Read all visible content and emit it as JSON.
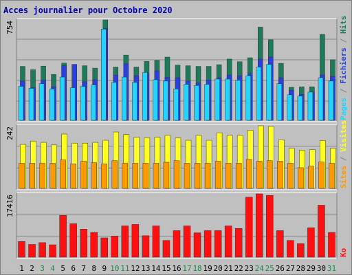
{
  "title": "Acces journalier pour Octobre 2020",
  "colors": {
    "frame_bg": "#c0c0c0",
    "panel_bg": "#c0c0c0",
    "title": "#0000aa",
    "weekday_label": "#000000",
    "weekend_label": "#1e8a4a",
    "hits": "#1d7a5a",
    "files": "#2a3fe0",
    "pages": "#22d5ff",
    "visits": "#ffff22",
    "sites": "#ff9900",
    "ko": "#ff1010"
  },
  "chart_data": [
    {
      "type": "bar",
      "panel": "hits-files-pages",
      "ymax_label": "754",
      "ylim": [
        0,
        754
      ],
      "legend": [
        {
          "text": "Pages",
          "key": "pages"
        },
        {
          "text": " / ",
          "key": "sep"
        },
        {
          "text": "Fichiers",
          "key": "files"
        },
        {
          "text": " / ",
          "key": "sep"
        },
        {
          "text": "Hits",
          "key": "hits"
        }
      ],
      "categories": [
        "1",
        "2",
        "3",
        "4",
        "5",
        "6",
        "7",
        "8",
        "9",
        "10",
        "11",
        "12",
        "13",
        "14",
        "15",
        "16",
        "17",
        "18",
        "19",
        "20",
        "21",
        "22",
        "23",
        "24",
        "25",
        "26",
        "27",
        "28",
        "29",
        "30",
        "31"
      ],
      "series": [
        {
          "name": "Hits",
          "values": [
            405,
            380,
            407,
            345,
            430,
            420,
            410,
            392,
            754,
            400,
            490,
            400,
            442,
            450,
            475,
            415,
            410,
            405,
            405,
            418,
            460,
            440,
            470,
            700,
            605,
            428,
            248,
            252,
            252,
            645,
            455
          ]
        },
        {
          "name": "Fichiers",
          "values": [
            295,
            245,
            300,
            252,
            410,
            420,
            290,
            305,
            690,
            340,
            425,
            335,
            350,
            372,
            322,
            320,
            295,
            280,
            302,
            320,
            340,
            335,
            350,
            460,
            475,
            320,
            225,
            195,
            212,
            340,
            330
          ]
        },
        {
          "name": "Pages",
          "values": [
            255,
            240,
            275,
            235,
            325,
            245,
            255,
            265,
            685,
            285,
            325,
            285,
            360,
            305,
            295,
            235,
            270,
            262,
            270,
            310,
            310,
            300,
            335,
            400,
            420,
            275,
            192,
            182,
            212,
            320,
            295
          ]
        }
      ]
    },
    {
      "type": "bar",
      "panel": "visits-sites",
      "ymax_label": "242",
      "ylim": [
        0,
        242
      ],
      "legend": [
        {
          "text": "Sites",
          "key": "sites"
        },
        {
          "text": " / ",
          "key": "sep"
        },
        {
          "text": "Visites",
          "key": "visits"
        }
      ],
      "categories": [
        "1",
        "2",
        "3",
        "4",
        "5",
        "6",
        "7",
        "8",
        "9",
        "10",
        "11",
        "12",
        "13",
        "14",
        "15",
        "16",
        "17",
        "18",
        "19",
        "20",
        "21",
        "22",
        "23",
        "24",
        "25",
        "26",
        "27",
        "28",
        "29",
        "30",
        "31"
      ],
      "series": [
        {
          "name": "Visites",
          "values": [
            170,
            183,
            178,
            168,
            210,
            175,
            175,
            178,
            186,
            218,
            208,
            198,
            196,
            198,
            205,
            195,
            186,
            205,
            186,
            215,
            205,
            205,
            225,
            242,
            240,
            188,
            155,
            148,
            150,
            185,
            155
          ]
        },
        {
          "name": "Sites",
          "values": [
            97,
            97,
            97,
            97,
            110,
            95,
            105,
            99,
            95,
            107,
            97,
            97,
            97,
            97,
            101,
            107,
            97,
            97,
            97,
            105,
            97,
            97,
            112,
            105,
            107,
            105,
            97,
            80,
            86,
            102,
            97
          ]
        }
      ]
    },
    {
      "type": "bar",
      "panel": "ko",
      "ymax_label": "17416",
      "ylim": [
        0,
        17416
      ],
      "legend": [
        {
          "text": "Ko",
          "key": "ko"
        }
      ],
      "categories": [
        "1",
        "2",
        "3",
        "4",
        "5",
        "6",
        "7",
        "8",
        "9",
        "10",
        "11",
        "12",
        "13",
        "14",
        "15",
        "16",
        "17",
        "18",
        "19",
        "20",
        "21",
        "22",
        "23",
        "24",
        "25",
        "26",
        "27",
        "28",
        "29",
        "30",
        "31"
      ],
      "series": [
        {
          "name": "Ko",
          "values": [
            4300,
            3500,
            4000,
            3400,
            11500,
            9200,
            7700,
            6800,
            5300,
            5800,
            8600,
            9000,
            5900,
            8600,
            4600,
            7300,
            8600,
            6700,
            7300,
            7300,
            8600,
            7900,
            16500,
            17416,
            17000,
            7300,
            4600,
            3700,
            8100,
            14300,
            6800
          ]
        }
      ]
    }
  ],
  "x_labels": [
    {
      "text": "1",
      "weekend": false
    },
    {
      "text": "2",
      "weekend": false
    },
    {
      "text": "3",
      "weekend": true
    },
    {
      "text": "4",
      "weekend": true
    },
    {
      "text": "5",
      "weekend": false
    },
    {
      "text": "6",
      "weekend": false
    },
    {
      "text": "7",
      "weekend": false
    },
    {
      "text": "8",
      "weekend": false
    },
    {
      "text": "9",
      "weekend": false
    },
    {
      "text": "10",
      "weekend": true
    },
    {
      "text": "11",
      "weekend": true
    },
    {
      "text": "12",
      "weekend": false
    },
    {
      "text": "13",
      "weekend": false
    },
    {
      "text": "14",
      "weekend": false
    },
    {
      "text": "15",
      "weekend": false
    },
    {
      "text": "16",
      "weekend": false
    },
    {
      "text": "17",
      "weekend": true
    },
    {
      "text": "18",
      "weekend": true
    },
    {
      "text": "19",
      "weekend": false
    },
    {
      "text": "20",
      "weekend": false
    },
    {
      "text": "21",
      "weekend": false
    },
    {
      "text": "22",
      "weekend": false
    },
    {
      "text": "23",
      "weekend": false
    },
    {
      "text": "24",
      "weekend": true
    },
    {
      "text": "25",
      "weekend": true
    },
    {
      "text": "26",
      "weekend": false
    },
    {
      "text": "27",
      "weekend": false
    },
    {
      "text": "28",
      "weekend": false
    },
    {
      "text": "29",
      "weekend": false
    },
    {
      "text": "30",
      "weekend": false
    },
    {
      "text": "31",
      "weekend": true
    }
  ]
}
